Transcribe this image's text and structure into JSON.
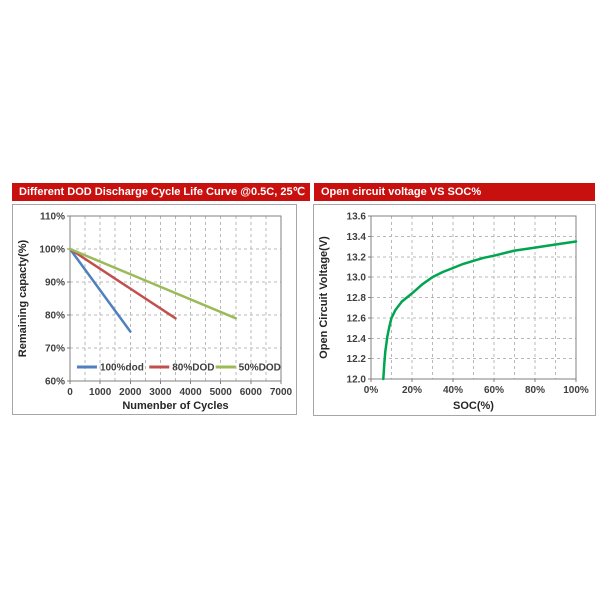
{
  "banners": {
    "left": "Different DOD Discharge Cycle Life Curve @0.5C, 25℃",
    "right": "Open circuit voltage VS SOC%"
  },
  "colors": {
    "banner_red": "#c8100e",
    "grid": "#b8b8b8",
    "plot_border": "#808080",
    "tick_text": "#3f3f3f",
    "axis_title_text": "#262626",
    "panel_border": "#a6a6a6"
  },
  "chart_data": [
    {
      "id": "dod_cycle_life",
      "type": "line",
      "title": "Different DOD Discharge Cycle Life Curve @0.5C, 25℃",
      "xlabel": "Numenber of Cycles",
      "ylabel": "Remaining capacty(%)",
      "xlim": [
        0,
        7000
      ],
      "ylim": [
        60,
        110
      ],
      "x_ticks": [
        0,
        1000,
        2000,
        3000,
        4000,
        5000,
        6000,
        7000
      ],
      "x_tick_labels": [
        "0",
        "1000",
        "2000",
        "3000",
        "4000",
        "5000",
        "6000",
        "7000"
      ],
      "y_ticks": [
        60,
        70,
        80,
        90,
        100,
        110
      ],
      "y_tick_labels": [
        "60%",
        "70%",
        "80%",
        "90%",
        "100%",
        "110%"
      ],
      "x_minor_grid_step": 500,
      "y_grid_step": 10,
      "grid_style": "dashed",
      "legend_position": "inside-bottom",
      "series": [
        {
          "name": "100%dod",
          "color": "#4f81bd",
          "points": [
            [
              0,
              100
            ],
            [
              2000,
              75
            ]
          ]
        },
        {
          "name": "80%DOD",
          "color": "#c0504d",
          "points": [
            [
              0,
              100
            ],
            [
              3500,
              79
            ]
          ]
        },
        {
          "name": "50%DOD",
          "color": "#9bbb59",
          "points": [
            [
              0,
              100
            ],
            [
              5500,
              79
            ]
          ]
        }
      ]
    },
    {
      "id": "ocv_vs_soc",
      "type": "line",
      "title": "Open circuit voltage VS SOC%",
      "xlabel": "SOC(%)",
      "ylabel": "Open Circuit Voltage(V)",
      "xlim": [
        0,
        100
      ],
      "ylim": [
        12.0,
        13.6
      ],
      "x_ticks": [
        0,
        20,
        40,
        60,
        80,
        100
      ],
      "x_tick_labels": [
        "0%",
        "20%",
        "40%",
        "60%",
        "80%",
        "100%"
      ],
      "y_ticks": [
        12.0,
        12.2,
        12.4,
        12.6,
        12.8,
        13.0,
        13.2,
        13.4,
        13.6
      ],
      "y_tick_labels": [
        "12.0",
        "12.2",
        "12.4",
        "12.6",
        "12.8",
        "13.0",
        "13.2",
        "13.4",
        "13.6"
      ],
      "x_minor_grid_step": 10,
      "y_grid_step": 0.2,
      "grid_style": "dashed",
      "legend_position": "none",
      "series": [
        {
          "name": "Open Circuit Voltage",
          "color": "#00a550",
          "points": [
            [
              6,
              12.0
            ],
            [
              6.5,
              12.15
            ],
            [
              7,
              12.27
            ],
            [
              8,
              12.42
            ],
            [
              9,
              12.52
            ],
            [
              10,
              12.6
            ],
            [
              12,
              12.68
            ],
            [
              15,
              12.76
            ],
            [
              20,
              12.84
            ],
            [
              25,
              12.93
            ],
            [
              30,
              13.0
            ],
            [
              35,
              13.05
            ],
            [
              40,
              13.09
            ],
            [
              45,
              13.13
            ],
            [
              50,
              13.16
            ],
            [
              55,
              13.19
            ],
            [
              60,
              13.21
            ],
            [
              70,
              13.26
            ],
            [
              80,
              13.29
            ],
            [
              90,
              13.32
            ],
            [
              100,
              13.35
            ]
          ]
        }
      ]
    }
  ]
}
